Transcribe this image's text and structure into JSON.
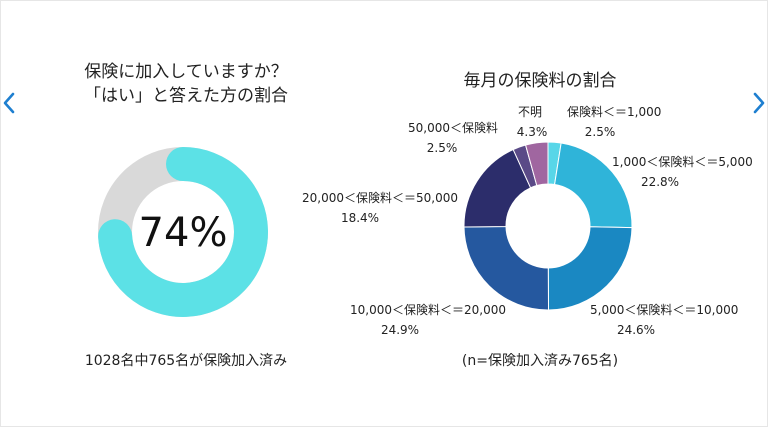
{
  "colors": {
    "donut_fill": "#5ce1e6",
    "donut_track": "#d9d9d9",
    "nav_arrow": "#1e7fd0"
  },
  "nav": {
    "prev_icon": "chevron-left-icon",
    "next_icon": "chevron-right-icon"
  },
  "left": {
    "title_line1": "保険に加入していますか？",
    "title_line2": "「はい」と答えた方の割合",
    "percent_label": "74%",
    "caption": "1028名中765名が保険加入済み"
  },
  "right": {
    "title": "毎月の保険料の割合",
    "caption": "(n=保険加入済み765名)"
  },
  "chart_data": [
    {
      "type": "pie",
      "title": "保険に加入していますか？ 「はい」と答えた方の割合",
      "values": [
        74,
        26
      ],
      "center_label": "74%",
      "total": 1028,
      "count": 765
    },
    {
      "type": "pie",
      "title": "毎月の保険料の割合",
      "slices": [
        {
          "label": "保険料＜＝1,000",
          "value": 2.5,
          "display": "2.5%",
          "color": "#58d6e8"
        },
        {
          "label": "1,000＜保険料＜＝5,000",
          "value": 22.8,
          "display": "22.8%",
          "color": "#2fb4d9"
        },
        {
          "label": "5,000＜保険料＜＝10,000",
          "value": 24.6,
          "display": "24.6%",
          "color": "#1a88c2"
        },
        {
          "label": "10,000＜保険料＜＝20,000",
          "value": 24.9,
          "display": "24.9%",
          "color": "#25589f"
        },
        {
          "label": "20,000＜保険料＜＝50,000",
          "value": 18.4,
          "display": "18.4%",
          "color": "#2c2d6b"
        },
        {
          "label": "50,000＜保険料",
          "value": 2.5,
          "display": "2.5%",
          "color": "#5a4a87"
        },
        {
          "label": "不明",
          "value": 4.3,
          "display": "4.3%",
          "color": "#a066a0"
        }
      ],
      "note": "(n=保険加入済み765名)"
    }
  ]
}
